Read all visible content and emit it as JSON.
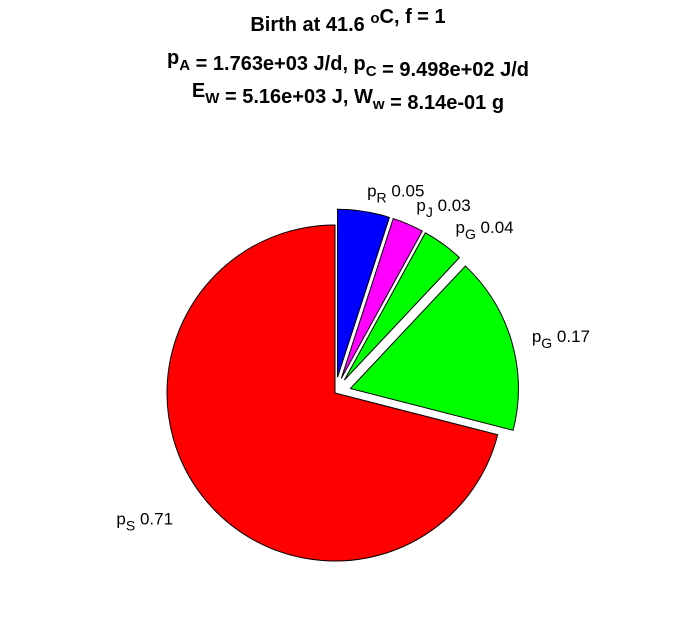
{
  "chart_data": {
    "type": "pie",
    "title_lines": [
      [
        {
          "t": "Birth at 41.6 "
        },
        {
          "t": "o",
          "sup": true
        },
        {
          "t": "C, f = 1"
        }
      ],
      [
        {
          "t": "p"
        },
        {
          "t": "A",
          "sub": true
        },
        {
          "t": " = 1.763e+03 J/d, p"
        },
        {
          "t": "C",
          "sub": true
        },
        {
          "t": " = 9.498e+02 J/d"
        }
      ],
      [
        {
          "t": "E"
        },
        {
          "t": "W",
          "sub": true
        },
        {
          "t": " = 5.16e+03 J, W"
        },
        {
          "t": "w",
          "sub": true
        },
        {
          "t": " = 8.14e-01 g"
        }
      ]
    ],
    "slices": [
      {
        "symbol": "p",
        "sub": "R",
        "label": "0.05",
        "value": 0.05,
        "color": "#0000ff",
        "exploded": true
      },
      {
        "symbol": "p",
        "sub": "J",
        "label": "0.03",
        "value": 0.03,
        "color": "#ff00ff",
        "exploded": true
      },
      {
        "symbol": "p",
        "sub": "G",
        "label": "0.04",
        "value": 0.04,
        "color": "#00ff00",
        "exploded": true
      },
      {
        "symbol": "p",
        "sub": "G",
        "label": "0.17",
        "value": 0.17,
        "color": "#00ff00",
        "exploded": true
      },
      {
        "symbol": "p",
        "sub": "S",
        "label": "0.71",
        "value": 0.71,
        "color": "#ff0000",
        "exploded": false
      }
    ],
    "start_angle_deg": 90,
    "direction": "clockwise",
    "legend": "none"
  }
}
